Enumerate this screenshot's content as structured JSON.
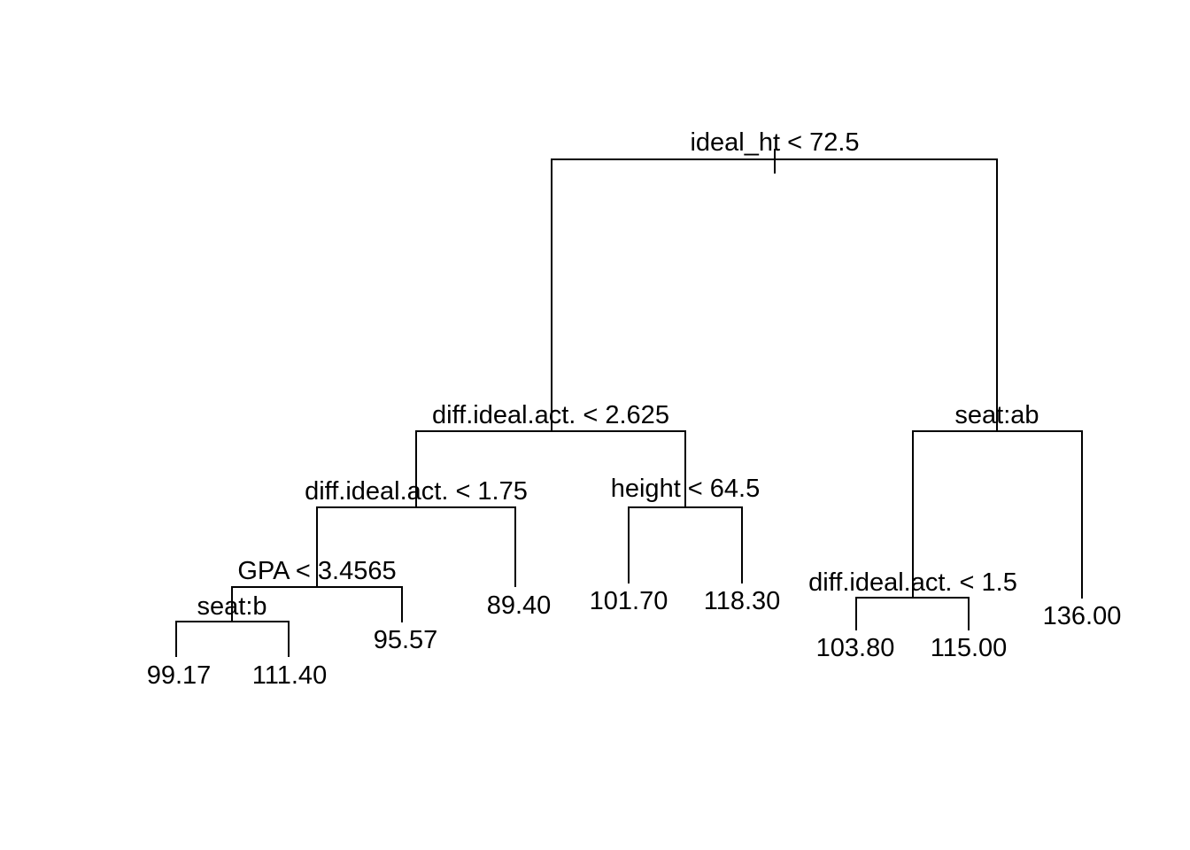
{
  "tree": {
    "root_split": "ideal_ht < 72.5",
    "splits": {
      "left_split": "diff.ideal.act. < 2.625",
      "right_split": "seat:ab",
      "left_left_split": "diff.ideal.act. < 1.75",
      "left_right_split": "height < 64.5",
      "left_left_left_split": "GPA < 3.4565",
      "left_left_left_left_split": "seat:b",
      "right_left_split": "diff.ideal.act. < 1.5"
    },
    "leaves": {
      "leaf_1": "99.17",
      "leaf_2": "111.40",
      "leaf_3": "95.57",
      "leaf_4": "89.40",
      "leaf_5": "101.70",
      "leaf_6": "118.30",
      "leaf_7": "103.80",
      "leaf_8": "115.00",
      "leaf_9": "136.00"
    }
  }
}
